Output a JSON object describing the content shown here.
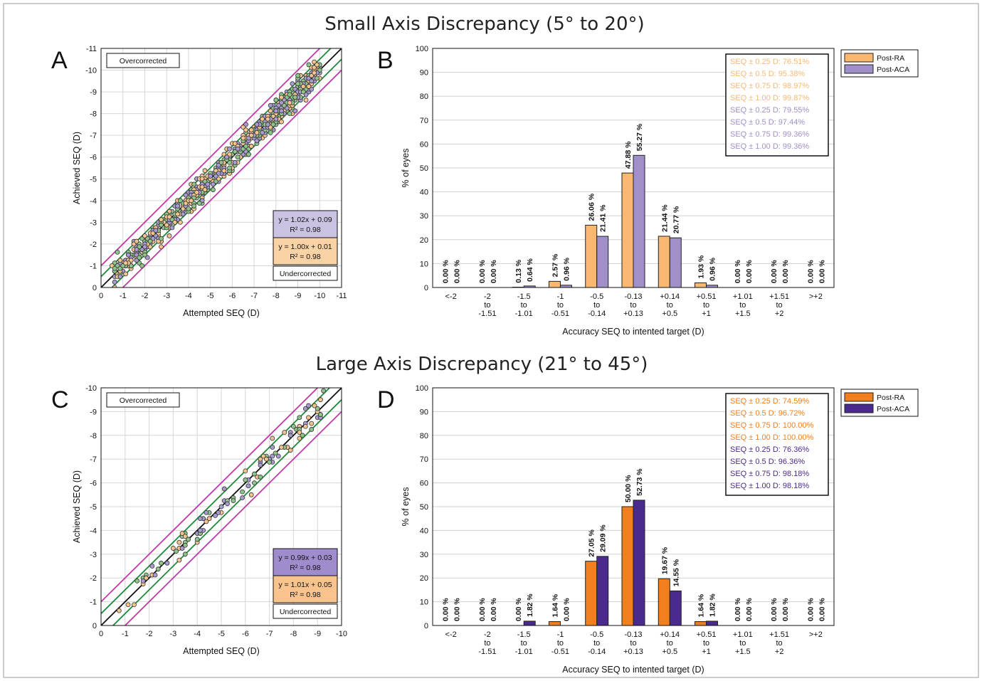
{
  "titles": {
    "top": "Small Axis Discrepancy (5° to 20°)",
    "bottom": "Large Axis Discrepancy (21° to 45°)"
  },
  "colors": {
    "ra_light": "#f9b872",
    "aca_light": "#a18fca",
    "ra_dark": "#f07f1e",
    "aca_dark": "#4b2a8e",
    "green_line": "#1f8a3a",
    "magenta_line": "#c13aa8",
    "scatter_ra": "#f6c48e",
    "scatter_aca": "#a99bd0",
    "scatter_green": "#8fc48a"
  },
  "chart_data": [
    {
      "id": "A",
      "type": "scatter",
      "panel_label": "A",
      "xlabel": "Attempted SEQ (D)",
      "ylabel": "Achieved SEQ (D)",
      "xlim": [
        0,
        -11
      ],
      "ylim": [
        0,
        -11
      ],
      "ticks": [
        "0",
        "-1",
        "-2",
        "-3",
        "-4",
        "-5",
        "-6",
        "-7",
        "-8",
        "-9",
        "-10",
        "-11"
      ],
      "grid": true,
      "annotations": {
        "over": "Overcorrected",
        "under": "Undercorrected"
      },
      "fits": [
        {
          "eq": "y = 1.02x + 0.09",
          "r2": "R² = 0.98",
          "color": "#cbc2e2"
        },
        {
          "eq": "y = 1.00x + 0.01",
          "r2": "R² = 0.98",
          "color": "#f9d2a6"
        }
      ],
      "reference_lines": {
        "identity": 0,
        "inner_band": 0.5,
        "outer_band": 1.0
      },
      "point_count": 780,
      "x_range_points": [
        -0.5,
        -10
      ],
      "spread": 0.28
    },
    {
      "id": "B",
      "type": "bar",
      "panel_label": "B",
      "xlabel": "Accuracy SEQ to intented target (D)",
      "ylabel": "% of eyes",
      "ylim": [
        0,
        100
      ],
      "yticks": [
        "0",
        "10",
        "20",
        "30",
        "40",
        "50",
        "60",
        "70",
        "80",
        "90",
        "100"
      ],
      "categories": [
        [
          "<-2"
        ],
        [
          "-2",
          "to",
          "-1.51"
        ],
        [
          "-1.5",
          "to",
          "-1.01"
        ],
        [
          "-1",
          "to",
          "-0.51"
        ],
        [
          "-0.5",
          "to",
          "-0.14"
        ],
        [
          "-0.13",
          "to",
          "+0.13"
        ],
        [
          "+0.14",
          "to",
          "+0.5"
        ],
        [
          "+0.51",
          "to",
          "+1"
        ],
        [
          "+1.01",
          "to",
          "+1.5"
        ],
        [
          "+1.51",
          "to",
          "+2"
        ],
        [
          ">+2"
        ]
      ],
      "series": [
        {
          "name": "Post-RA",
          "color": "#f9b872",
          "values": [
            0,
            0,
            0.13,
            2.57,
            26.06,
            47.88,
            21.44,
            1.93,
            0,
            0,
            0
          ],
          "labels": [
            "0.00 %",
            "0.00 %",
            "0.13 %",
            "2.57 %",
            "26.06 %",
            "47.88 %",
            "21.44 %",
            "1.93 %",
            "0.00 %",
            "0.00 %",
            "0.00 %"
          ]
        },
        {
          "name": "Post-ACA",
          "color": "#a18fca",
          "values": [
            0,
            0,
            0.64,
            0.96,
            21.41,
            55.27,
            20.77,
            0.96,
            0,
            0,
            0
          ],
          "labels": [
            "0.00 %",
            "0.00 %",
            "0.64 %",
            "0.96 %",
            "21.41 %",
            "55.27 %",
            "20.77 %",
            "0.96 %",
            "0.00 %",
            "0.00 %",
            "0.00 %"
          ]
        }
      ],
      "stats": [
        {
          "text": "SEQ ± 0.25 D: 76.51%",
          "series": 0
        },
        {
          "text": "SEQ ± 0.5 D: 95.38%",
          "series": 0
        },
        {
          "text": "SEQ ± 0.75 D: 98.97%",
          "series": 0
        },
        {
          "text": "SEQ ± 1.00 D: 99.87%",
          "series": 0
        },
        {
          "text": "SEQ ± 0.25 D: 79.55%",
          "series": 1
        },
        {
          "text": "SEQ ± 0.5 D: 97.44%",
          "series": 1
        },
        {
          "text": "SEQ ± 0.75 D: 99.36%",
          "series": 1
        },
        {
          "text": "SEQ ± 1.00 D: 99.36%",
          "series": 1
        }
      ],
      "legend": "top-right"
    },
    {
      "id": "C",
      "type": "scatter",
      "panel_label": "C",
      "xlabel": "Attempted SEQ (D)",
      "ylabel": "Achieved SEQ (D)",
      "xlim": [
        0,
        -10
      ],
      "ylim": [
        0,
        -10
      ],
      "ticks": [
        "0",
        "-1",
        "-2",
        "-3",
        "-4",
        "-5",
        "-6",
        "-7",
        "-8",
        "-9",
        "-10"
      ],
      "grid": true,
      "annotations": {
        "over": "Overcorrected",
        "under": "Undercorrected"
      },
      "fits": [
        {
          "eq": "y = 0.99x + 0.03",
          "r2": "R² = 0.98",
          "color": "#9e8ccc"
        },
        {
          "eq": "y = 1.01x + 0.05",
          "r2": "R² = 0.98",
          "color": "#f8c38c"
        }
      ],
      "reference_lines": {
        "identity": 0,
        "inner_band": 0.5,
        "outer_band": 1.0
      },
      "point_count": 120,
      "x_range_points": [
        -0.6,
        -9.3
      ],
      "spread": 0.3
    },
    {
      "id": "D",
      "type": "bar",
      "panel_label": "D",
      "xlabel": "Accuracy SEQ to intented target (D)",
      "ylabel": "% of eyes",
      "ylim": [
        0,
        100
      ],
      "yticks": [
        "0",
        "10",
        "20",
        "30",
        "40",
        "50",
        "60",
        "70",
        "80",
        "90",
        "100"
      ],
      "categories": [
        [
          "<-2"
        ],
        [
          "-2",
          "to",
          "-1.51"
        ],
        [
          "-1.5",
          "to",
          "-1.01"
        ],
        [
          "-1",
          "to",
          "-0.51"
        ],
        [
          "-0.5",
          "to",
          "-0.14"
        ],
        [
          "-0.13",
          "to",
          "+0.13"
        ],
        [
          "+0.14",
          "to",
          "+0.5"
        ],
        [
          "+0.51",
          "to",
          "+1"
        ],
        [
          "+1.01",
          "to",
          "+1.5"
        ],
        [
          "+1.51",
          "to",
          "+2"
        ],
        [
          ">+2"
        ]
      ],
      "series": [
        {
          "name": "Post-RA",
          "color": "#f07f1e",
          "values": [
            0,
            0,
            0,
            1.64,
            27.05,
            50.0,
            19.67,
            1.64,
            0,
            0,
            0
          ],
          "labels": [
            "0.00 %",
            "0.00 %",
            "0.00 %",
            "1.64 %",
            "27.05 %",
            "50.00 %",
            "19.67 %",
            "1.64 %",
            "0.00 %",
            "0.00 %",
            "0.00 %"
          ]
        },
        {
          "name": "Post-ACA",
          "color": "#4b2a8e",
          "values": [
            0,
            0,
            1.82,
            0,
            29.09,
            52.73,
            14.55,
            1.82,
            0,
            0,
            0
          ],
          "labels": [
            "0.00 %",
            "0.00 %",
            "1.82 %",
            "0.00 %",
            "29.09 %",
            "52.73 %",
            "14.55 %",
            "1.82 %",
            "0.00 %",
            "0.00 %",
            "0.00 %"
          ]
        }
      ],
      "stats": [
        {
          "text": "SEQ ± 0.25 D: 74.59%",
          "series": 0
        },
        {
          "text": "SEQ ± 0.5 D: 96.72%",
          "series": 0
        },
        {
          "text": "SEQ ± 0.75 D: 100.00%",
          "series": 0
        },
        {
          "text": "SEQ ± 1.00 D: 100.00%",
          "series": 0
        },
        {
          "text": "SEQ ± 0.25 D: 76.36%",
          "series": 1
        },
        {
          "text": "SEQ ± 0.5 D: 96.36%",
          "series": 1
        },
        {
          "text": "SEQ ± 0.75 D: 98.18%",
          "series": 1
        },
        {
          "text": "SEQ ± 1.00 D: 98.18%",
          "series": 1
        }
      ],
      "legend": "top-right"
    }
  ]
}
